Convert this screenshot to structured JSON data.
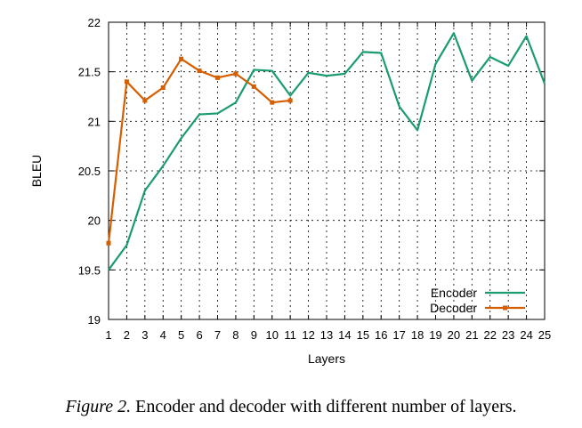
{
  "chart_data": {
    "type": "line",
    "xlabel": "Layers",
    "ylabel": "BLEU",
    "ylim": [
      19,
      22
    ],
    "yticks": [
      "19",
      "19.5",
      "20",
      "20.5",
      "21",
      "21.5",
      "22"
    ],
    "x": [
      1,
      2,
      3,
      4,
      5,
      6,
      7,
      8,
      9,
      10,
      11,
      12,
      13,
      14,
      15,
      16,
      17,
      18,
      19,
      20,
      21,
      22,
      23,
      24,
      25
    ],
    "xtick_labels": [
      "1",
      "2",
      "3",
      "4",
      "5",
      "6",
      "7",
      "8",
      "9",
      "10",
      "11",
      "12",
      "13",
      "14",
      "15",
      "16",
      "17",
      "18",
      "19",
      "20",
      "21",
      "22",
      "23",
      "24",
      "25"
    ],
    "grid": true,
    "legend_position": "bottom-right",
    "series": [
      {
        "name": "Encoder",
        "color": "#1a9b72",
        "marker": "none",
        "x": [
          1,
          2,
          3,
          4,
          5,
          6,
          7,
          8,
          9,
          10,
          11,
          12,
          13,
          14,
          15,
          16,
          17,
          18,
          19,
          20,
          21,
          22,
          23,
          24,
          25
        ],
        "values": [
          19.5,
          19.75,
          20.3,
          20.55,
          20.83,
          21.07,
          21.08,
          21.19,
          21.52,
          21.51,
          21.26,
          21.49,
          21.46,
          21.48,
          21.7,
          21.69,
          21.15,
          20.91,
          21.58,
          21.89,
          21.41,
          21.65,
          21.56,
          21.86,
          21.38
        ]
      },
      {
        "name": "Decoder",
        "color": "#d55e00",
        "marker": "square",
        "x": [
          1,
          2,
          3,
          4,
          5,
          6,
          7,
          8,
          9,
          10,
          11
        ],
        "values": [
          19.77,
          21.4,
          21.21,
          21.34,
          21.63,
          21.51,
          21.44,
          21.48,
          21.35,
          21.19,
          21.21
        ]
      }
    ]
  },
  "caption": {
    "figure_label": "Figure 2.",
    "text": " Encoder and decoder with different number of layers."
  }
}
